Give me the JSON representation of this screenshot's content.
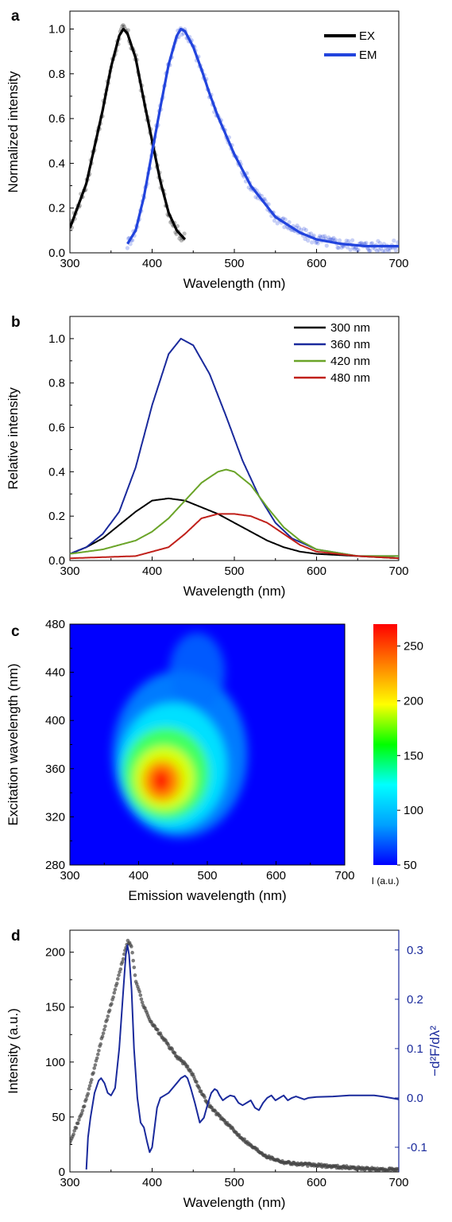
{
  "colors": {
    "ex": "#000000",
    "em": "#2244dd",
    "s300": "#000000",
    "s360": "#1a2a9c",
    "s420": "#6aa428",
    "s480": "#c0201a",
    "d_points": "#444444",
    "d_deriv": "#1a2a9c"
  },
  "chart_data": [
    {
      "id": "a",
      "panel_label": "a",
      "type": "line",
      "xlabel": "Wavelength (nm)",
      "ylabel": "Normalized intensity",
      "xlim": [
        300,
        700
      ],
      "ylim": [
        0,
        1.08
      ],
      "xticks": [
        300,
        400,
        500,
        600,
        700
      ],
      "yticks": [
        0.0,
        0.2,
        0.4,
        0.6,
        0.8,
        1.0
      ],
      "ytick_labels": [
        "0.0",
        "0.2",
        "0.4",
        "0.6",
        "0.8",
        "1.0"
      ],
      "legend_position": "top-right",
      "series": [
        {
          "name": "EX",
          "color_key": "ex",
          "style": "thick line with scattered data points",
          "x": [
            300,
            320,
            340,
            350,
            360,
            365,
            370,
            380,
            390,
            400,
            410,
            420,
            430,
            440
          ],
          "y": [
            0.11,
            0.31,
            0.64,
            0.83,
            0.97,
            1.0,
            0.98,
            0.87,
            0.68,
            0.5,
            0.32,
            0.18,
            0.1,
            0.06
          ]
        },
        {
          "name": "EM",
          "color_key": "em",
          "style": "thick line with scattered data points",
          "x": [
            370,
            380,
            390,
            400,
            410,
            420,
            430,
            435,
            440,
            450,
            460,
            470,
            480,
            500,
            520,
            550,
            580,
            600,
            630,
            660,
            700
          ],
          "y": [
            0.04,
            0.1,
            0.25,
            0.45,
            0.65,
            0.84,
            0.97,
            1.0,
            0.99,
            0.92,
            0.82,
            0.71,
            0.61,
            0.44,
            0.3,
            0.16,
            0.09,
            0.06,
            0.04,
            0.03,
            0.03
          ]
        }
      ]
    },
    {
      "id": "b",
      "panel_label": "b",
      "type": "line",
      "xlabel": "Wavelength (nm)",
      "ylabel": "Relative intensity",
      "xlim": [
        300,
        700
      ],
      "ylim": [
        0,
        1.1
      ],
      "xticks": [
        300,
        400,
        500,
        600,
        700
      ],
      "yticks": [
        0.0,
        0.2,
        0.4,
        0.6,
        0.8,
        1.0
      ],
      "ytick_labels": [
        "0.0",
        "0.2",
        "0.4",
        "0.6",
        "0.8",
        "1.0"
      ],
      "legend_position": "top-right",
      "series": [
        {
          "name": "300 nm",
          "color_key": "s300",
          "x": [
            300,
            320,
            340,
            360,
            380,
            400,
            420,
            440,
            460,
            480,
            500,
            520,
            540,
            560,
            580,
            600,
            650,
            700
          ],
          "y": [
            0.03,
            0.06,
            0.1,
            0.16,
            0.22,
            0.27,
            0.28,
            0.27,
            0.24,
            0.21,
            0.17,
            0.13,
            0.09,
            0.06,
            0.04,
            0.03,
            0.02,
            0.01
          ]
        },
        {
          "name": "360 nm",
          "color_key": "s360",
          "x": [
            300,
            320,
            340,
            360,
            380,
            400,
            420,
            435,
            450,
            470,
            490,
            510,
            530,
            550,
            570,
            600,
            650,
            700
          ],
          "y": [
            0.03,
            0.06,
            0.12,
            0.22,
            0.42,
            0.7,
            0.93,
            1.0,
            0.97,
            0.84,
            0.65,
            0.45,
            0.29,
            0.17,
            0.1,
            0.05,
            0.02,
            0.02
          ]
        },
        {
          "name": "420 nm",
          "color_key": "s420",
          "x": [
            300,
            340,
            380,
            400,
            420,
            440,
            460,
            480,
            490,
            500,
            520,
            540,
            560,
            580,
            600,
            650,
            700
          ],
          "y": [
            0.03,
            0.05,
            0.09,
            0.13,
            0.19,
            0.27,
            0.35,
            0.4,
            0.41,
            0.4,
            0.34,
            0.24,
            0.15,
            0.09,
            0.05,
            0.02,
            0.02
          ]
        },
        {
          "name": "480 nm",
          "color_key": "s480",
          "x": [
            300,
            380,
            420,
            440,
            460,
            480,
            500,
            520,
            540,
            560,
            580,
            600,
            650,
            700
          ],
          "y": [
            0.01,
            0.02,
            0.06,
            0.12,
            0.19,
            0.21,
            0.21,
            0.2,
            0.17,
            0.12,
            0.07,
            0.04,
            0.02,
            0.01
          ]
        }
      ]
    },
    {
      "id": "c",
      "panel_label": "c",
      "type": "heatmap",
      "xlabel": "Emission wavelength (nm)",
      "ylabel": "Excitation wavelength (nm)",
      "xlim": [
        300,
        700
      ],
      "ylim": [
        280,
        480
      ],
      "xticks": [
        300,
        400,
        500,
        600,
        700
      ],
      "yticks": [
        280,
        320,
        360,
        400,
        440,
        480
      ],
      "peak": {
        "x": 433,
        "y": 350,
        "value": 265
      },
      "colorbar": {
        "min": 50,
        "max": 270,
        "ticks": [
          50,
          100,
          150,
          200,
          250
        ],
        "label": "I (a.u.)",
        "colors": [
          "#0000ff",
          "#00a0ff",
          "#00ffff",
          "#00ff00",
          "#ffff00",
          "#ff8000",
          "#ff0000"
        ]
      }
    },
    {
      "id": "d",
      "panel_label": "d",
      "type": "line",
      "xlabel": "Wavelength (nm)",
      "ylabel": "Intensity (a.u.)",
      "y2label_html": "−d²F/dλ²",
      "xlim": [
        300,
        700
      ],
      "ylim": [
        0,
        220
      ],
      "y2lim": [
        -0.15,
        0.34
      ],
      "xticks": [
        300,
        400,
        500,
        600,
        700
      ],
      "yticks": [
        0,
        50,
        100,
        150,
        200
      ],
      "y2ticks": [
        -0.1,
        0.0,
        0.1,
        0.2,
        0.3
      ],
      "y2tick_labels": [
        "-0.1",
        "0.0",
        "0.1",
        "0.2",
        "0.3"
      ],
      "series": [
        {
          "name": "",
          "axis": "left",
          "color_key": "d_points",
          "style": "points",
          "x": [
            300,
            310,
            320,
            330,
            340,
            350,
            360,
            370,
            375,
            380,
            390,
            400,
            410,
            420,
            430,
            440,
            450,
            460,
            470,
            480,
            490,
            500,
            520,
            540,
            560,
            580,
            600,
            620,
            640,
            660,
            680,
            700
          ],
          "y": [
            28,
            45,
            66,
            95,
            125,
            152,
            180,
            210,
            205,
            175,
            150,
            135,
            125,
            115,
            105,
            98,
            88,
            72,
            60,
            52,
            45,
            37,
            24,
            14,
            9,
            7,
            6,
            5,
            4,
            3,
            2,
            2
          ]
        },
        {
          "name": "",
          "axis": "right",
          "color_key": "d_deriv",
          "style": "line",
          "x": [
            320,
            322,
            325,
            330,
            335,
            338,
            342,
            346,
            350,
            355,
            360,
            365,
            368,
            370,
            372,
            375,
            378,
            382,
            386,
            390,
            394,
            397,
            400,
            403,
            406,
            410,
            415,
            420,
            425,
            430,
            435,
            440,
            443,
            447,
            452,
            458,
            463,
            468,
            472,
            476,
            479,
            482,
            486,
            490,
            495,
            500,
            505,
            510,
            515,
            520,
            525,
            530,
            535,
            540,
            545,
            550,
            555,
            560,
            565,
            570,
            575,
            580,
            585,
            590,
            600,
            620,
            640,
            660,
            670,
            680,
            690,
            700
          ],
          "y": [
            -0.145,
            -0.08,
            -0.04,
            0.01,
            0.035,
            0.04,
            0.03,
            0.01,
            0.005,
            0.02,
            0.1,
            0.22,
            0.29,
            0.31,
            0.29,
            0.22,
            0.1,
            0.0,
            -0.05,
            -0.06,
            -0.09,
            -0.11,
            -0.1,
            -0.06,
            -0.02,
            0.0,
            0.005,
            0.01,
            0.02,
            0.03,
            0.04,
            0.045,
            0.04,
            0.02,
            -0.01,
            -0.05,
            -0.04,
            -0.01,
            0.01,
            0.018,
            0.015,
            0.005,
            -0.005,
            0.0,
            0.005,
            0.003,
            -0.01,
            -0.015,
            -0.01,
            -0.005,
            -0.02,
            -0.025,
            -0.01,
            0.0,
            0.005,
            -0.005,
            0.0,
            0.005,
            -0.005,
            0.0,
            0.003,
            0.0,
            -0.003,
            0.0,
            0.002,
            0.003,
            0.005,
            0.005,
            0.005,
            0.003,
            0.0,
            -0.003
          ]
        }
      ]
    }
  ]
}
